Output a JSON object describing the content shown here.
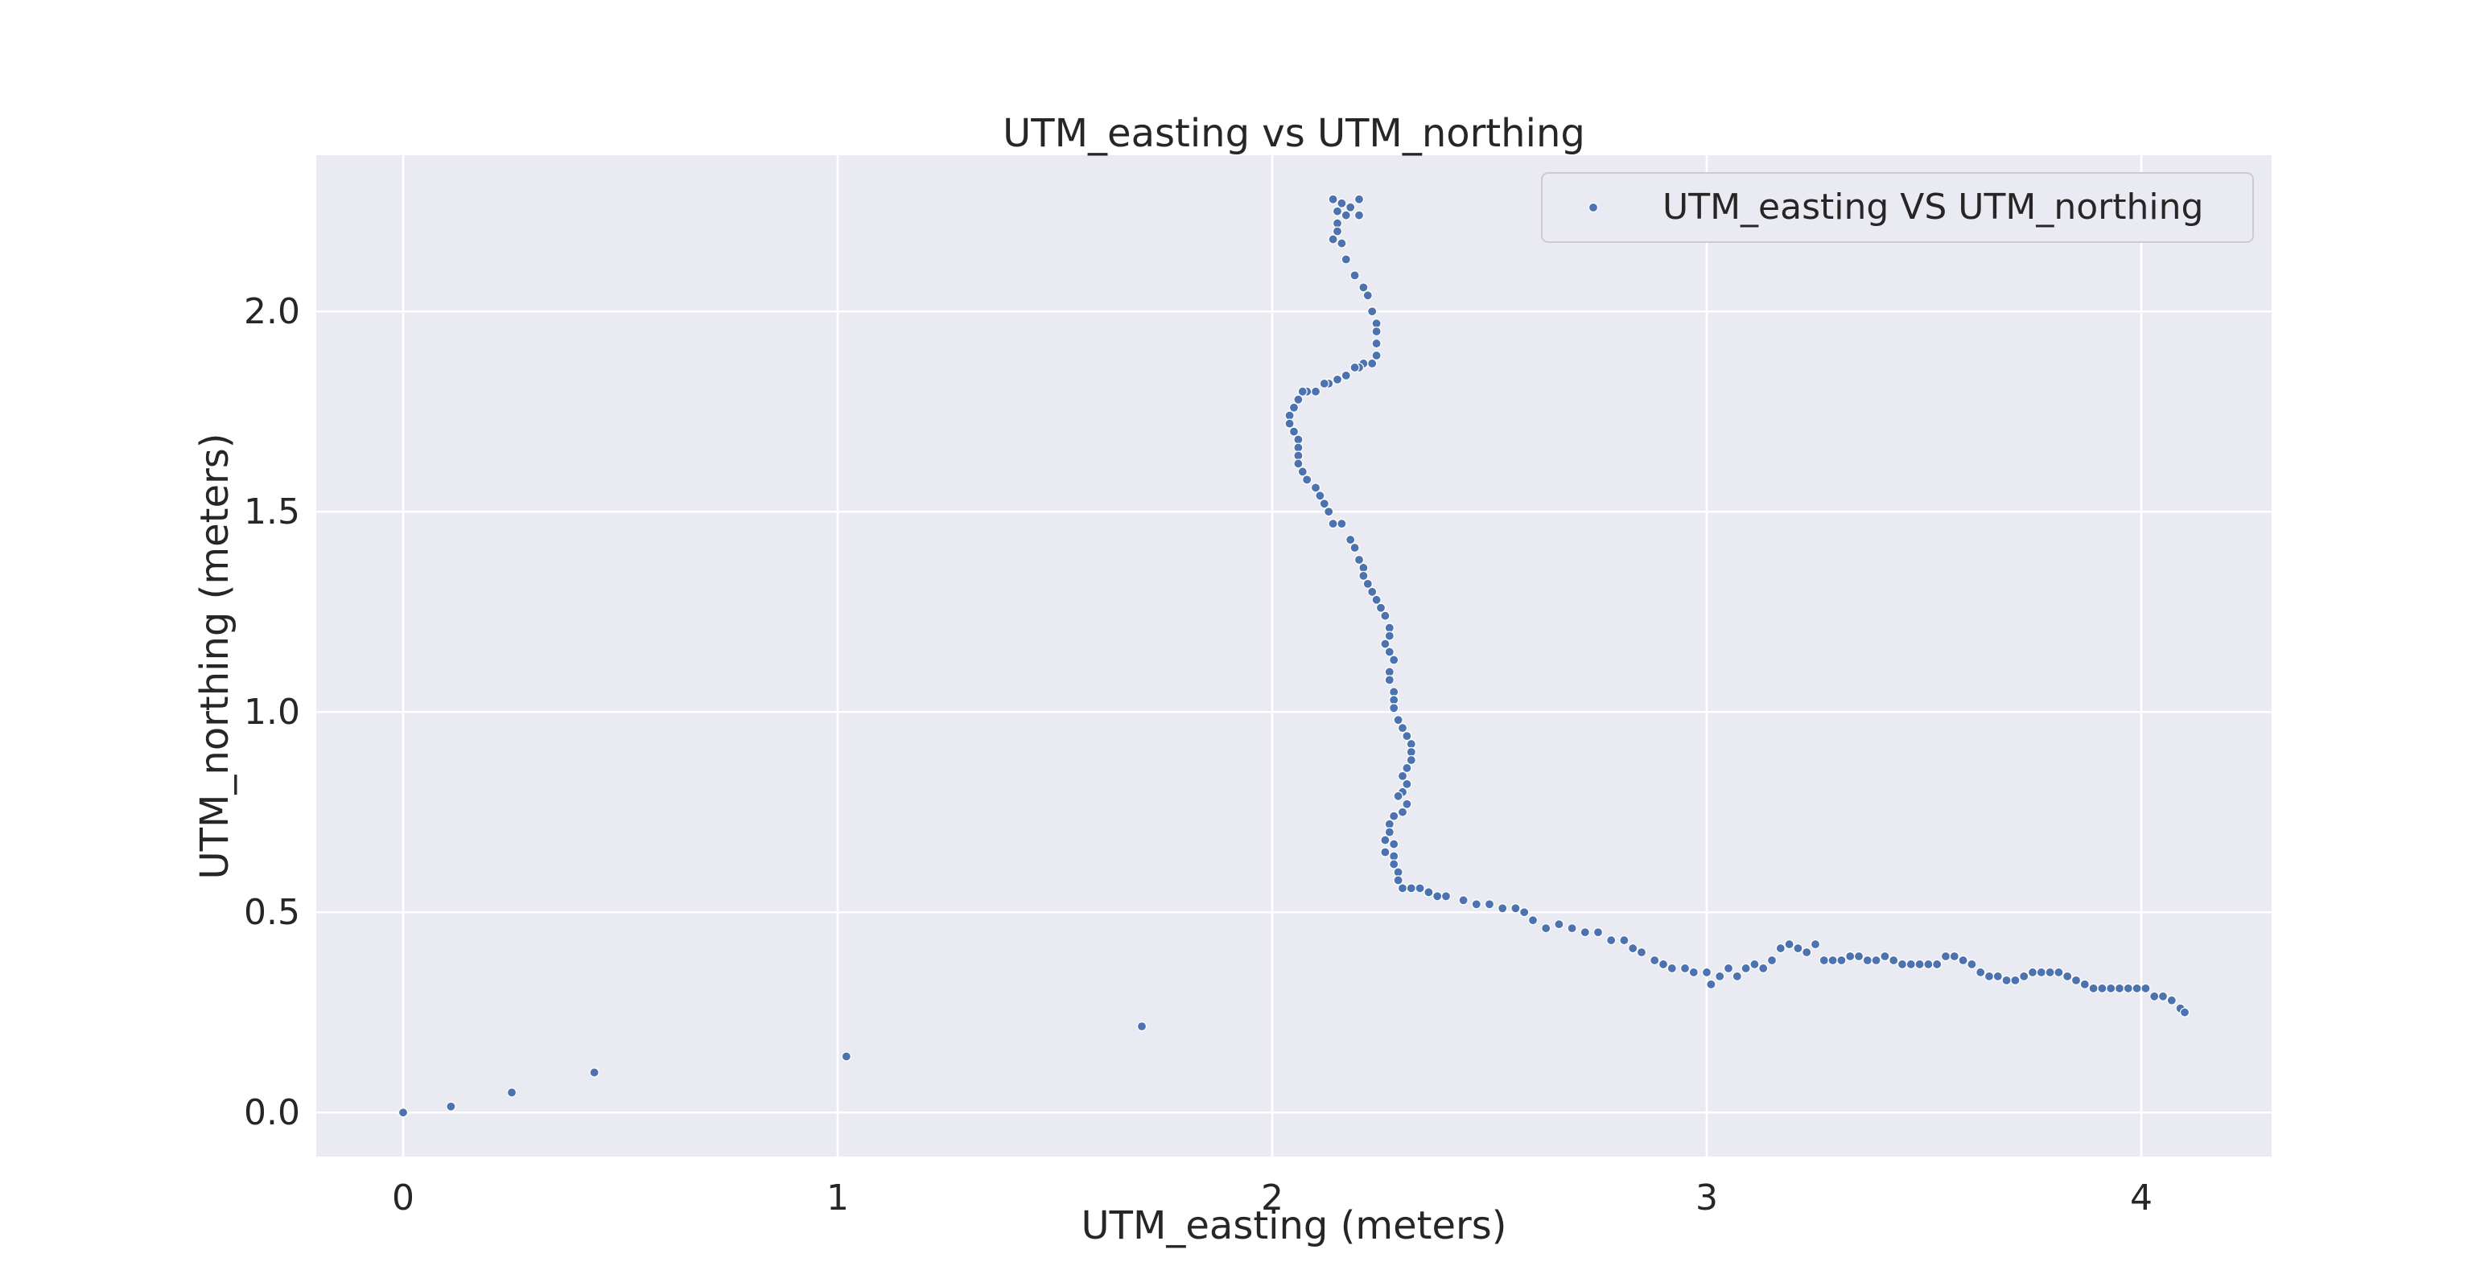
{
  "chart_data": {
    "type": "scatter",
    "title": "UTM_easting vs UTM_northing",
    "xlabel": "UTM_easting (meters)",
    "ylabel": "UTM_northing (meters)",
    "xlim": [
      -0.2,
      4.3
    ],
    "ylim": [
      -0.11,
      2.39
    ],
    "xticks": [
      0,
      1,
      2,
      3,
      4
    ],
    "xtick_labels": [
      "0",
      "1",
      "2",
      "3",
      "4"
    ],
    "yticks": [
      0.0,
      0.5,
      1.0,
      1.5,
      2.0
    ],
    "ytick_labels": [
      "0.0",
      "0.5",
      "1.0",
      "1.5",
      "2.0"
    ],
    "grid": true,
    "legend_position": "top-right",
    "colors": {
      "series": "#4c72b0",
      "plot_bg": "#eaeaf2",
      "grid": "#ffffff",
      "text": "#262626"
    },
    "series": [
      {
        "name": "UTM_easting VS UTM_northing",
        "points": [
          [
            0,
            0
          ],
          [
            0.11,
            0.015
          ],
          [
            0.25,
            0.05
          ],
          [
            0.44,
            0.1
          ],
          [
            1.02,
            0.14
          ],
          [
            1.7,
            0.215
          ],
          [
            2.14,
            2.28
          ],
          [
            2.16,
            2.27
          ],
          [
            2.18,
            2.26
          ],
          [
            2.2,
            2.28
          ],
          [
            2.15,
            2.25
          ],
          [
            2.17,
            2.24
          ],
          [
            2.2,
            2.24
          ],
          [
            2.15,
            2.22
          ],
          [
            2.15,
            2.2
          ],
          [
            2.14,
            2.18
          ],
          [
            2.16,
            2.17
          ],
          [
            2.17,
            2.13
          ],
          [
            2.19,
            2.09
          ],
          [
            2.21,
            2.06
          ],
          [
            2.22,
            2.04
          ],
          [
            2.23,
            2.0
          ],
          [
            2.24,
            1.97
          ],
          [
            2.24,
            1.95
          ],
          [
            2.24,
            1.92
          ],
          [
            2.24,
            1.89
          ],
          [
            2.23,
            1.87
          ],
          [
            2.21,
            1.87
          ],
          [
            2.2,
            1.86
          ],
          [
            2.19,
            1.86
          ],
          [
            2.17,
            1.84
          ],
          [
            2.15,
            1.83
          ],
          [
            2.13,
            1.82
          ],
          [
            2.12,
            1.82
          ],
          [
            2.1,
            1.8
          ],
          [
            2.08,
            1.8
          ],
          [
            2.07,
            1.8
          ],
          [
            2.06,
            1.78
          ],
          [
            2.05,
            1.76
          ],
          [
            2.04,
            1.74
          ],
          [
            2.04,
            1.72
          ],
          [
            2.05,
            1.7
          ],
          [
            2.06,
            1.68
          ],
          [
            2.06,
            1.66
          ],
          [
            2.06,
            1.64
          ],
          [
            2.06,
            1.62
          ],
          [
            2.07,
            1.6
          ],
          [
            2.08,
            1.58
          ],
          [
            2.1,
            1.56
          ],
          [
            2.11,
            1.54
          ],
          [
            2.12,
            1.52
          ],
          [
            2.13,
            1.5
          ],
          [
            2.14,
            1.47
          ],
          [
            2.16,
            1.47
          ],
          [
            2.18,
            1.43
          ],
          [
            2.19,
            1.41
          ],
          [
            2.2,
            1.38
          ],
          [
            2.21,
            1.36
          ],
          [
            2.21,
            1.34
          ],
          [
            2.22,
            1.32
          ],
          [
            2.23,
            1.3
          ],
          [
            2.24,
            1.28
          ],
          [
            2.25,
            1.26
          ],
          [
            2.26,
            1.24
          ],
          [
            2.27,
            1.21
          ],
          [
            2.27,
            1.19
          ],
          [
            2.26,
            1.17
          ],
          [
            2.27,
            1.15
          ],
          [
            2.28,
            1.13
          ],
          [
            2.27,
            1.1
          ],
          [
            2.27,
            1.08
          ],
          [
            2.28,
            1.05
          ],
          [
            2.28,
            1.03
          ],
          [
            2.28,
            1.01
          ],
          [
            2.29,
            0.98
          ],
          [
            2.3,
            0.96
          ],
          [
            2.31,
            0.94
          ],
          [
            2.32,
            0.92
          ],
          [
            2.32,
            0.9
          ],
          [
            2.32,
            0.88
          ],
          [
            2.31,
            0.86
          ],
          [
            2.3,
            0.84
          ],
          [
            2.31,
            0.82
          ],
          [
            2.3,
            0.8
          ],
          [
            2.29,
            0.79
          ],
          [
            2.31,
            0.77
          ],
          [
            2.3,
            0.75
          ],
          [
            2.28,
            0.74
          ],
          [
            2.27,
            0.72
          ],
          [
            2.27,
            0.7
          ],
          [
            2.26,
            0.68
          ],
          [
            2.28,
            0.67
          ],
          [
            2.26,
            0.65
          ],
          [
            2.28,
            0.64
          ],
          [
            2.28,
            0.62
          ],
          [
            2.29,
            0.6
          ],
          [
            2.29,
            0.58
          ],
          [
            2.3,
            0.56
          ],
          [
            2.32,
            0.56
          ],
          [
            2.34,
            0.56
          ],
          [
            2.36,
            0.55
          ],
          [
            2.38,
            0.54
          ],
          [
            2.4,
            0.54
          ],
          [
            2.44,
            0.53
          ],
          [
            2.47,
            0.52
          ],
          [
            2.5,
            0.52
          ],
          [
            2.53,
            0.51
          ],
          [
            2.56,
            0.51
          ],
          [
            2.58,
            0.5
          ],
          [
            2.6,
            0.48
          ],
          [
            2.63,
            0.46
          ],
          [
            2.66,
            0.47
          ],
          [
            2.69,
            0.46
          ],
          [
            2.72,
            0.45
          ],
          [
            2.75,
            0.45
          ],
          [
            2.78,
            0.43
          ],
          [
            2.81,
            0.43
          ],
          [
            2.83,
            0.41
          ],
          [
            2.85,
            0.4
          ],
          [
            2.88,
            0.38
          ],
          [
            2.9,
            0.37
          ],
          [
            2.92,
            0.36
          ],
          [
            2.95,
            0.36
          ],
          [
            2.97,
            0.35
          ],
          [
            3.0,
            0.35
          ],
          [
            3.01,
            0.32
          ],
          [
            3.03,
            0.34
          ],
          [
            3.05,
            0.36
          ],
          [
            3.07,
            0.34
          ],
          [
            3.09,
            0.36
          ],
          [
            3.11,
            0.37
          ],
          [
            3.13,
            0.36
          ],
          [
            3.15,
            0.38
          ],
          [
            3.17,
            0.41
          ],
          [
            3.19,
            0.42
          ],
          [
            3.21,
            0.41
          ],
          [
            3.23,
            0.4
          ],
          [
            3.25,
            0.42
          ],
          [
            3.27,
            0.38
          ],
          [
            3.29,
            0.38
          ],
          [
            3.31,
            0.38
          ],
          [
            3.33,
            0.39
          ],
          [
            3.35,
            0.39
          ],
          [
            3.37,
            0.38
          ],
          [
            3.39,
            0.38
          ],
          [
            3.41,
            0.39
          ],
          [
            3.43,
            0.38
          ],
          [
            3.45,
            0.37
          ],
          [
            3.47,
            0.37
          ],
          [
            3.49,
            0.37
          ],
          [
            3.51,
            0.37
          ],
          [
            3.53,
            0.37
          ],
          [
            3.55,
            0.39
          ],
          [
            3.57,
            0.39
          ],
          [
            3.59,
            0.38
          ],
          [
            3.61,
            0.37
          ],
          [
            3.63,
            0.35
          ],
          [
            3.65,
            0.34
          ],
          [
            3.67,
            0.34
          ],
          [
            3.69,
            0.33
          ],
          [
            3.71,
            0.33
          ],
          [
            3.73,
            0.34
          ],
          [
            3.75,
            0.35
          ],
          [
            3.77,
            0.35
          ],
          [
            3.79,
            0.35
          ],
          [
            3.81,
            0.35
          ],
          [
            3.83,
            0.34
          ],
          [
            3.85,
            0.33
          ],
          [
            3.87,
            0.32
          ],
          [
            3.89,
            0.31
          ],
          [
            3.91,
            0.31
          ],
          [
            3.93,
            0.31
          ],
          [
            3.95,
            0.31
          ],
          [
            3.97,
            0.31
          ],
          [
            3.99,
            0.31
          ],
          [
            4.01,
            0.31
          ],
          [
            4.03,
            0.29
          ],
          [
            4.05,
            0.29
          ],
          [
            4.07,
            0.28
          ],
          [
            4.09,
            0.26
          ],
          [
            4.1,
            0.25
          ]
        ]
      }
    ]
  }
}
